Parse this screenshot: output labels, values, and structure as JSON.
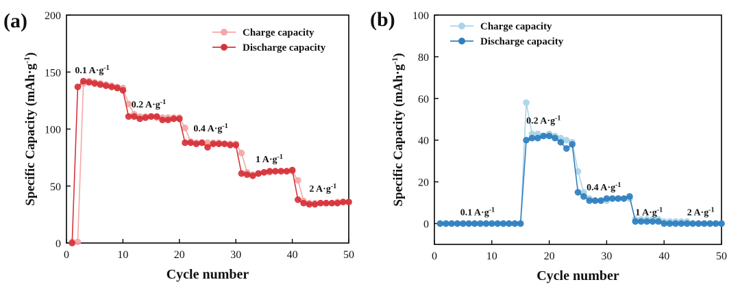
{
  "chart_data": [
    {
      "panel": "(a)",
      "type": "line",
      "xlabel": "Cycle number",
      "ylabel": "Specific Capacity (mAh·g",
      "ylabel_sup": "-1",
      "ylabel_tail": ")",
      "xlim": [
        0,
        50
      ],
      "ylim": [
        0,
        200
      ],
      "xticks": [
        0,
        10,
        20,
        30,
        40,
        50
      ],
      "yticks": [
        0,
        50,
        100,
        150,
        200
      ],
      "legend_position": "top-right",
      "annotations": [
        {
          "text": "0.1 A·g",
          "sup": "-1",
          "x": 1.5,
          "y": 149
        },
        {
          "text": "0.2 A·g",
          "sup": "-1",
          "x": 11.5,
          "y": 119
        },
        {
          "text": "0.4 A·g",
          "sup": "-1",
          "x": 22.5,
          "y": 98
        },
        {
          "text": "1 A·g",
          "sup": "-1",
          "x": 33.5,
          "y": 71
        },
        {
          "text": "2 A·g",
          "sup": "-1",
          "x": 43.0,
          "y": 45
        }
      ],
      "series": [
        {
          "name": "Charge capacity",
          "color": "#f4a6a6",
          "x": [
            1,
            2,
            3,
            4,
            5,
            6,
            7,
            8,
            9,
            10,
            11,
            12,
            13,
            14,
            15,
            16,
            17,
            18,
            19,
            20,
            21,
            22,
            23,
            24,
            25,
            26,
            27,
            28,
            29,
            30,
            31,
            32,
            33,
            34,
            35,
            36,
            37,
            38,
            39,
            40,
            41,
            42,
            43,
            44,
            45,
            46,
            47,
            48,
            49,
            50
          ],
          "values": [
            1,
            1,
            140,
            142,
            141,
            140,
            139,
            138,
            137,
            136,
            122,
            113,
            111,
            111,
            111,
            110,
            110,
            110,
            110,
            110,
            101,
            89,
            88,
            88,
            88,
            88,
            88,
            87,
            87,
            87,
            79,
            62,
            60,
            61,
            62,
            62,
            63,
            63,
            63,
            63,
            55,
            37,
            35,
            35,
            35,
            35,
            35,
            36,
            36,
            36
          ]
        },
        {
          "name": "Discharge capacity",
          "color": "#d6323a",
          "x": [
            1,
            2,
            3,
            4,
            5,
            6,
            7,
            8,
            9,
            10,
            11,
            12,
            13,
            14,
            15,
            16,
            17,
            18,
            19,
            20,
            21,
            22,
            23,
            24,
            25,
            26,
            27,
            28,
            29,
            30,
            31,
            32,
            33,
            34,
            35,
            36,
            37,
            38,
            39,
            40,
            41,
            42,
            43,
            44,
            45,
            46,
            47,
            48,
            49,
            50
          ],
          "values": [
            0,
            137,
            142,
            141,
            140,
            139,
            138,
            137,
            136,
            134,
            111,
            111,
            109,
            110,
            111,
            111,
            108,
            108,
            109,
            109,
            88,
            88,
            87,
            88,
            84,
            87,
            87,
            87,
            86,
            86,
            61,
            60,
            59,
            61,
            62,
            63,
            63,
            63,
            63,
            64,
            38,
            35,
            34,
            34,
            35,
            35,
            35,
            35,
            36,
            36
          ]
        }
      ]
    },
    {
      "panel": "(b)",
      "type": "line",
      "xlabel": "Cycle number",
      "ylabel": "Specific Capacity (mAh·g",
      "ylabel_sup": "-1",
      "ylabel_tail": ")",
      "xlim": [
        0,
        50
      ],
      "ylim": [
        -10,
        100
      ],
      "xticks": [
        0,
        10,
        20,
        30,
        40,
        50
      ],
      "yticks": [
        0,
        20,
        40,
        60,
        80,
        100
      ],
      "legend_position": "top-left",
      "annotations": [
        {
          "text": "0.1 A·g",
          "sup": "-1",
          "x": 4.5,
          "y": 4
        },
        {
          "text": "0.2 A·g",
          "sup": "-1",
          "x": 16.0,
          "y": 48
        },
        {
          "text": "0.4 A·g",
          "sup": "-1",
          "x": 26.5,
          "y": 16
        },
        {
          "text": "1 A·g",
          "sup": "-1",
          "x": 35.0,
          "y": 4
        },
        {
          "text": "2 A·g",
          "sup": "-1",
          "x": 44.0,
          "y": 4
        }
      ],
      "series": [
        {
          "name": "Charge capacity",
          "color": "#a8d4e8",
          "x": [
            1,
            2,
            3,
            4,
            5,
            6,
            7,
            8,
            9,
            10,
            11,
            12,
            13,
            14,
            15,
            16,
            17,
            18,
            19,
            20,
            21,
            22,
            23,
            24,
            25,
            26,
            27,
            28,
            29,
            30,
            31,
            32,
            33,
            34,
            35,
            36,
            37,
            38,
            39,
            40,
            41,
            42,
            43,
            44,
            45,
            46,
            47,
            48,
            49,
            50
          ],
          "values": [
            0,
            0,
            0,
            0,
            0,
            0,
            0,
            0,
            0,
            0,
            0,
            0,
            0,
            0,
            0,
            58,
            43,
            43,
            42,
            43,
            42,
            41,
            40,
            39,
            25,
            15,
            12,
            11,
            11,
            11,
            12,
            12,
            12,
            12,
            2,
            2,
            2,
            2,
            2,
            1,
            1,
            1,
            1,
            1,
            0,
            0,
            0,
            0,
            0,
            0
          ]
        },
        {
          "name": "Discharge capacity",
          "color": "#2f7fbf",
          "x": [
            1,
            2,
            3,
            4,
            5,
            6,
            7,
            8,
            9,
            10,
            11,
            12,
            13,
            14,
            15,
            16,
            17,
            18,
            19,
            20,
            21,
            22,
            23,
            24,
            25,
            26,
            27,
            28,
            29,
            30,
            31,
            32,
            33,
            34,
            35,
            36,
            37,
            38,
            39,
            40,
            41,
            42,
            43,
            44,
            45,
            46,
            47,
            48,
            49,
            50
          ],
          "values": [
            0,
            0,
            0,
            0,
            0,
            0,
            0,
            0,
            0,
            0,
            0,
            0,
            0,
            0,
            0,
            40,
            41,
            41,
            42,
            42,
            41,
            39,
            36,
            38,
            15,
            13,
            11,
            11,
            11,
            12,
            12,
            12,
            12,
            13,
            1,
            1,
            1,
            1,
            1,
            0,
            0,
            0,
            0,
            0,
            0,
            0,
            0,
            0,
            0,
            0
          ]
        }
      ]
    }
  ]
}
